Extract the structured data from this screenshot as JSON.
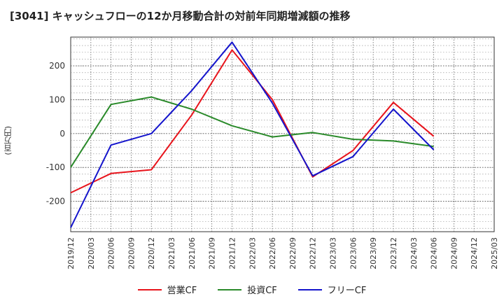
{
  "chart_data": {
    "type": "line",
    "title": "[3041]  キャッシュフローの12か月移動合計の対前年同期増減額の推移",
    "ylabel": "(百万円)",
    "xlabel": "",
    "ylim": [
      -290,
      285
    ],
    "yticks": [
      -200,
      -100,
      0,
      100,
      200
    ],
    "categories": [
      "2019/12",
      "2020/03",
      "2020/06",
      "2020/09",
      "2020/12",
      "2021/03",
      "2021/06",
      "2021/09",
      "2021/12",
      "2022/03",
      "2022/06",
      "2022/09",
      "2022/12",
      "2023/03",
      "2023/06",
      "2023/09",
      "2023/12",
      "2024/03",
      "2024/06",
      "2024/09",
      "2024/12",
      "2025/03"
    ],
    "series": [
      {
        "name": "営業CF",
        "color": "#e8141c",
        "points": [
          [
            "2019/12",
            -175
          ],
          [
            "2020/06",
            -118
          ],
          [
            "2020/12",
            -107
          ],
          [
            "2021/06",
            55
          ],
          [
            "2021/12",
            247
          ],
          [
            "2022/06",
            100
          ],
          [
            "2022/12",
            -128
          ],
          [
            "2023/06",
            -50
          ],
          [
            "2023/12",
            92
          ],
          [
            "2024/06",
            -8
          ]
        ]
      },
      {
        "name": "投資CF",
        "color": "#2a8a2a",
        "points": [
          [
            "2019/12",
            -100
          ],
          [
            "2020/06",
            86
          ],
          [
            "2020/12",
            108
          ],
          [
            "2021/06",
            72
          ],
          [
            "2021/12",
            23
          ],
          [
            "2022/06",
            -10
          ],
          [
            "2022/12",
            3
          ],
          [
            "2023/06",
            -17
          ],
          [
            "2023/12",
            -22
          ],
          [
            "2024/06",
            -38
          ]
        ]
      },
      {
        "name": "フリーCF",
        "color": "#1414cc",
        "points": [
          [
            "2019/12",
            -278
          ],
          [
            "2020/06",
            -34
          ],
          [
            "2020/12",
            0
          ],
          [
            "2021/06",
            127
          ],
          [
            "2021/12",
            270
          ],
          [
            "2022/06",
            90
          ],
          [
            "2022/12",
            -125
          ],
          [
            "2023/06",
            -68
          ],
          [
            "2023/12",
            72
          ],
          [
            "2024/06",
            -48
          ]
        ]
      }
    ]
  }
}
